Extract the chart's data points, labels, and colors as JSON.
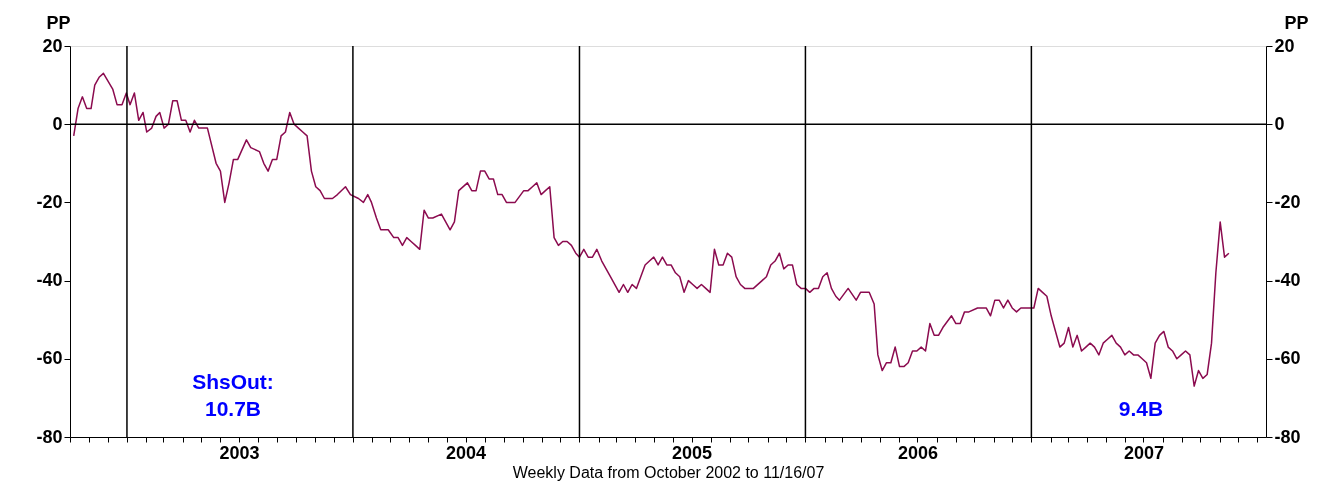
{
  "chart_data": {
    "type": "line",
    "ylabel": "PP",
    "y2label": "PP",
    "xlabel": "Weekly Data from October 2002 to 11/16/07",
    "annotations": [
      "ShsOut:\n10.7B",
      "9.4B"
    ],
    "xlim": [
      "2002-10-01",
      "2008-01-15"
    ],
    "xticks": [
      {
        "value": "2002-10-01",
        "label": null
      },
      {
        "value": "2002-11-01",
        "label": null
      },
      {
        "value": "2002-12-01",
        "label": null
      },
      {
        "value": "2003-01-01",
        "label": null
      },
      {
        "value": "2003-02-01",
        "label": null
      },
      {
        "value": "2003-03-01",
        "label": null
      },
      {
        "value": "2003-04-01",
        "label": null
      },
      {
        "value": "2003-05-01",
        "label": null
      },
      {
        "value": "2003-06-01",
        "label": null
      },
      {
        "value": "2003-07-01",
        "label": "2003"
      },
      {
        "value": "2003-08-01",
        "label": null
      },
      {
        "value": "2003-09-01",
        "label": null
      },
      {
        "value": "2003-10-01",
        "label": null
      },
      {
        "value": "2003-11-01",
        "label": null
      },
      {
        "value": "2003-12-01",
        "label": null
      },
      {
        "value": "2004-01-01",
        "label": null
      },
      {
        "value": "2004-02-01",
        "label": null
      },
      {
        "value": "2004-03-01",
        "label": null
      },
      {
        "value": "2004-04-01",
        "label": null
      },
      {
        "value": "2004-05-01",
        "label": null
      },
      {
        "value": "2004-06-01",
        "label": null
      },
      {
        "value": "2004-07-01",
        "label": "2004"
      },
      {
        "value": "2004-08-01",
        "label": null
      },
      {
        "value": "2004-09-01",
        "label": null
      },
      {
        "value": "2004-10-01",
        "label": null
      },
      {
        "value": "2004-11-01",
        "label": null
      },
      {
        "value": "2004-12-01",
        "label": null
      },
      {
        "value": "2005-01-01",
        "label": null
      },
      {
        "value": "2005-02-01",
        "label": null
      },
      {
        "value": "2005-03-01",
        "label": null
      },
      {
        "value": "2005-04-01",
        "label": null
      },
      {
        "value": "2005-05-01",
        "label": null
      },
      {
        "value": "2005-06-01",
        "label": null
      },
      {
        "value": "2005-07-01",
        "label": "2005"
      },
      {
        "value": "2005-08-01",
        "label": null
      },
      {
        "value": "2005-09-01",
        "label": null
      },
      {
        "value": "2005-10-01",
        "label": null
      },
      {
        "value": "2005-11-01",
        "label": null
      },
      {
        "value": "2005-12-01",
        "label": null
      },
      {
        "value": "2006-01-01",
        "label": null
      },
      {
        "value": "2006-02-01",
        "label": null
      },
      {
        "value": "2006-03-01",
        "label": null
      },
      {
        "value": "2006-04-01",
        "label": null
      },
      {
        "value": "2006-05-01",
        "label": null
      },
      {
        "value": "2006-06-01",
        "label": null
      },
      {
        "value": "2006-07-01",
        "label": "2006"
      },
      {
        "value": "2006-08-01",
        "label": null
      },
      {
        "value": "2006-09-01",
        "label": null
      },
      {
        "value": "2006-10-01",
        "label": null
      },
      {
        "value": "2006-11-01",
        "label": null
      },
      {
        "value": "2006-12-01",
        "label": null
      },
      {
        "value": "2007-01-01",
        "label": null
      },
      {
        "value": "2007-02-01",
        "label": null
      },
      {
        "value": "2007-03-01",
        "label": null
      },
      {
        "value": "2007-04-01",
        "label": null
      },
      {
        "value": "2007-05-01",
        "label": null
      },
      {
        "value": "2007-06-01",
        "label": null
      },
      {
        "value": "2007-07-01",
        "label": "2007"
      },
      {
        "value": "2007-08-01",
        "label": null
      },
      {
        "value": "2007-09-01",
        "label": null
      },
      {
        "value": "2007-10-01",
        "label": null
      },
      {
        "value": "2007-11-01",
        "label": null
      },
      {
        "value": "2007-12-01",
        "label": null
      },
      {
        "value": "2008-01-01",
        "label": null
      }
    ],
    "ylim": [
      -80,
      20
    ],
    "yticks": [
      -80,
      -60,
      -40,
      -20,
      0,
      20
    ],
    "y2lim": [
      -80,
      20
    ],
    "y2ticks": [
      -80,
      -60,
      -40,
      -20,
      0,
      20
    ],
    "grid": false,
    "ref_lines": [
      {
        "axis": "y",
        "value": 0
      },
      {
        "axis": "x",
        "value": "2003-01-01"
      },
      {
        "axis": "x",
        "value": "2004-01-01"
      },
      {
        "axis": "x",
        "value": "2005-01-01"
      },
      {
        "axis": "x",
        "value": "2006-01-01"
      },
      {
        "axis": "x",
        "value": "2007-01-01"
      }
    ],
    "x": [
      "2002-10-07",
      "2002-10-14",
      "2002-10-21",
      "2002-10-28",
      "2002-11-04",
      "2002-11-10",
      "2002-11-17",
      "2002-11-24",
      "2002-12-09",
      "2002-12-16",
      "2002-12-24",
      "2002-12-31",
      "2003-01-06",
      "2003-01-13",
      "2003-01-20",
      "2003-01-27",
      "2003-02-02",
      "2003-02-10",
      "2003-02-17",
      "2003-02-23",
      "2003-03-02",
      "2003-03-09",
      "2003-03-16",
      "2003-03-23",
      "2003-03-30",
      "2003-04-06",
      "2003-04-13",
      "2003-04-20",
      "2003-04-27",
      "2003-05-11",
      "2003-05-25",
      "2003-06-01",
      "2003-06-08",
      "2003-06-15",
      "2003-06-22",
      "2003-06-29",
      "2003-07-13",
      "2003-07-20",
      "2003-08-03",
      "2003-08-10",
      "2003-08-17",
      "2003-08-24",
      "2003-08-31",
      "2003-09-07",
      "2003-09-14",
      "2003-09-21",
      "2003-09-28",
      "2003-10-05",
      "2003-10-12",
      "2003-10-19",
      "2003-10-26",
      "2003-11-02",
      "2003-11-09",
      "2003-11-16",
      "2003-11-29",
      "2003-12-07",
      "2003-12-20",
      "2003-12-28",
      "2004-01-10",
      "2004-01-18",
      "2004-01-25",
      "2004-01-31",
      "2004-02-08",
      "2004-02-15",
      "2004-02-27",
      "2004-03-07",
      "2004-03-14",
      "2004-03-21",
      "2004-03-28",
      "2004-04-04",
      "2004-04-11",
      "2004-04-18",
      "2004-04-25",
      "2004-05-02",
      "2004-05-09",
      "2004-05-23",
      "2004-06-06",
      "2004-06-13",
      "2004-06-20",
      "2004-07-04",
      "2004-07-11",
      "2004-07-18",
      "2004-07-25",
      "2004-08-01",
      "2004-08-08",
      "2004-08-15",
      "2004-08-22",
      "2004-08-29",
      "2004-09-05",
      "2004-09-12",
      "2004-09-19",
      "2004-10-03",
      "2004-10-10",
      "2004-10-17",
      "2004-10-24",
      "2004-10-31",
      "2004-11-07",
      "2004-11-14",
      "2004-11-21",
      "2004-11-28",
      "2004-12-05",
      "2004-12-12",
      "2004-12-19",
      "2004-12-26",
      "2005-01-01",
      "2005-01-08",
      "2005-01-15",
      "2005-01-22",
      "2005-01-29",
      "2005-02-06",
      "2005-02-20",
      "2005-03-06",
      "2005-03-13",
      "2005-03-20",
      "2005-03-27",
      "2005-04-03",
      "2005-04-17",
      "2005-04-24",
      "2005-05-01",
      "2005-05-08",
      "2005-05-15",
      "2005-05-22",
      "2005-05-29",
      "2005-06-05",
      "2005-06-12",
      "2005-06-19",
      "2005-06-26",
      "2005-07-03",
      "2005-07-10",
      "2005-07-17",
      "2005-07-24",
      "2005-07-31",
      "2005-08-07",
      "2005-08-14",
      "2005-08-21",
      "2005-08-28",
      "2005-09-04",
      "2005-09-11",
      "2005-09-18",
      "2005-09-25",
      "2005-10-02",
      "2005-10-09",
      "2005-10-23",
      "2005-10-30",
      "2005-11-06",
      "2005-11-13",
      "2005-11-20",
      "2005-11-27",
      "2005-12-04",
      "2005-12-11",
      "2005-12-18",
      "2005-12-25",
      "2006-01-01",
      "2006-01-08",
      "2006-01-15",
      "2006-01-22",
      "2006-01-29",
      "2006-02-05",
      "2006-02-12",
      "2006-02-19",
      "2006-02-25",
      "2006-03-11",
      "2006-03-24",
      "2006-03-31",
      "2006-04-14",
      "2006-04-22",
      "2006-04-28",
      "2006-05-05",
      "2006-05-12",
      "2006-05-19",
      "2006-05-26",
      "2006-06-02",
      "2006-06-09",
      "2006-06-16",
      "2006-06-23",
      "2006-06-30",
      "2006-07-07",
      "2006-07-14",
      "2006-07-21",
      "2006-07-28",
      "2006-08-04",
      "2006-08-11",
      "2006-08-25",
      "2006-09-01",
      "2006-09-08",
      "2006-09-15",
      "2006-09-22",
      "2006-10-06",
      "2006-10-20",
      "2006-10-27",
      "2006-11-03",
      "2006-11-10",
      "2006-11-17",
      "2006-11-24",
      "2006-12-01",
      "2006-12-08",
      "2006-12-15",
      "2006-12-22",
      "2007-01-05",
      "2007-01-12",
      "2007-01-19",
      "2007-01-26",
      "2007-02-02",
      "2007-02-09",
      "2007-02-16",
      "2007-02-23",
      "2007-03-02",
      "2007-03-09",
      "2007-03-16",
      "2007-03-23",
      "2007-03-30",
      "2007-04-06",
      "2007-04-13",
      "2007-04-20",
      "2007-04-27",
      "2007-05-04",
      "2007-05-11",
      "2007-05-18",
      "2007-05-25",
      "2007-06-01",
      "2007-06-08",
      "2007-06-15",
      "2007-06-22",
      "2007-06-29",
      "2007-07-06",
      "2007-07-13",
      "2007-07-20",
      "2007-07-27",
      "2007-08-03",
      "2007-08-10",
      "2007-08-17",
      "2007-08-24",
      "2007-08-31",
      "2007-09-07",
      "2007-09-14",
      "2007-09-21",
      "2007-09-28",
      "2007-10-05",
      "2007-10-12",
      "2007-10-19",
      "2007-10-26",
      "2007-11-02",
      "2007-11-09",
      "2007-11-16"
    ],
    "series": [
      {
        "color": "#8b0b4f",
        "values": [
          -3,
          4,
          7,
          4,
          4,
          10,
          12,
          13,
          9,
          5,
          5,
          8,
          5,
          8,
          1,
          3,
          -2,
          -1,
          2,
          3,
          -1,
          0,
          6,
          6,
          1,
          1,
          -2,
          1,
          -1,
          -1,
          -10,
          -12,
          -20,
          -15,
          -9,
          -9,
          -4,
          -6,
          -7,
          -10,
          -12,
          -9,
          -9,
          -3,
          -2,
          3,
          0,
          -1,
          -2,
          -3,
          -12,
          -16,
          -17,
          -19,
          -19,
          -18,
          -16,
          -18,
          -19,
          -20,
          -18,
          -20,
          -24,
          -27,
          -27,
          -29,
          -29,
          -31,
          -29,
          -30,
          -31,
          -32,
          -22,
          -24,
          -24,
          -23,
          -27,
          -25,
          -17,
          -15,
          -17,
          -17,
          -12,
          -12,
          -14,
          -14,
          -18,
          -18,
          -20,
          -20,
          -20,
          -17,
          -17,
          -16,
          -15,
          -18,
          -17,
          -16,
          -29,
          -31,
          -30,
          -30,
          -31,
          -33,
          -34,
          -32,
          -34,
          -34,
          -32,
          -35,
          -39,
          -43,
          -41,
          -43,
          -41,
          -42,
          -36,
          -35,
          -34,
          -36,
          -34,
          -36,
          -36,
          -38,
          -39,
          -43,
          -40,
          -41,
          -42,
          -41,
          -42,
          -43,
          -32,
          -36,
          -36,
          -33,
          -34,
          -39,
          -41,
          -42,
          -42,
          -42,
          -40,
          -39,
          -36,
          -35,
          -33,
          -37,
          -36,
          -36,
          -41,
          -42,
          -42,
          -43,
          -42,
          -42,
          -39,
          -38,
          -42,
          -44,
          -45,
          -42,
          -45,
          -43,
          -43,
          -46,
          -59,
          -63,
          -61,
          -61,
          -57,
          -62,
          -62,
          -61,
          -58,
          -58,
          -57,
          -58,
          -51,
          -54,
          -54,
          -52,
          -49,
          -51,
          -51,
          -48,
          -48,
          -47,
          -47,
          -49,
          -45,
          -45,
          -47,
          -45,
          -47,
          -48,
          -47,
          -47,
          -47,
          -42,
          -43,
          -44,
          -49,
          -53,
          -57,
          -56,
          -52,
          -57,
          -54,
          -58,
          -57,
          -56,
          -57,
          -59,
          -56,
          -55,
          -54,
          -56,
          -57,
          -59,
          -58,
          -59,
          -59,
          -60,
          -61,
          -65,
          -56,
          -54,
          -53,
          -57,
          -58,
          -60,
          -59,
          -58,
          -59,
          -67,
          -63,
          -65,
          -64,
          -56,
          -38,
          -25,
          -34,
          -33
        ]
      }
    ]
  }
}
